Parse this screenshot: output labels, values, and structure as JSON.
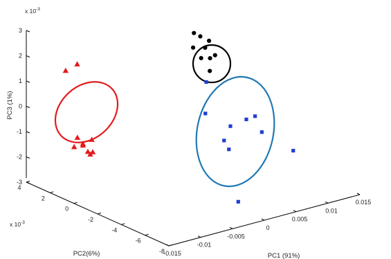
{
  "chart_data": {
    "type": "scatter",
    "title": "",
    "view": "3d",
    "axes": {
      "x": {
        "label": "PC1 (91%)",
        "range": [
          -0.015,
          0.015
        ],
        "ticks": [
          "-0.015",
          "-0.01",
          "-0.005",
          "0",
          "0.005",
          "0.01",
          "0.015"
        ]
      },
      "y": {
        "label": "PC2(6%)",
        "range": [
          -8,
          4
        ],
        "ticks": [
          "-8",
          "-6",
          "-4",
          "-2",
          "0",
          "2",
          "4"
        ],
        "multiplier": "x 10",
        "exponent": "-3"
      },
      "z": {
        "label": "PC3 (1%)",
        "range": [
          -3,
          3
        ],
        "ticks": [
          "-3",
          "-2",
          "-1",
          "0",
          "1",
          "2",
          "3"
        ],
        "multiplier": "x 10",
        "exponent": "-3"
      }
    },
    "grid": false,
    "series": [
      {
        "marker": "triangle",
        "color": "#e31a1c",
        "cluster_ellipse_color": "#e31a1c",
        "points": [
          {
            "x": -0.0105,
            "y": 3.1,
            "z": 1.3
          },
          {
            "x": -0.0085,
            "y": 3.2,
            "z": 1.4
          },
          {
            "x": -0.0135,
            "y": 0.5,
            "z": -0.6
          },
          {
            "x": -0.0132,
            "y": 0.2,
            "z": -0.8
          },
          {
            "x": -0.013,
            "y": 0.3,
            "z": -0.9
          },
          {
            "x": -0.0128,
            "y": 0.0,
            "z": -1.1
          },
          {
            "x": -0.0126,
            "y": -0.1,
            "z": -1.2
          },
          {
            "x": -0.0124,
            "y": -0.2,
            "z": -1.1
          },
          {
            "x": -0.012,
            "y": 0.1,
            "z": -0.7
          },
          {
            "x": -0.0142,
            "y": 0.4,
            "z": -0.9
          }
        ]
      },
      {
        "marker": "circle",
        "color": "#000000",
        "cluster_ellipse_color": "#000000",
        "points": [
          {
            "x": 0.002,
            "y": -1.0,
            "z": 2.8
          },
          {
            "x": 0.003,
            "y": -1.0,
            "z": 2.6
          },
          {
            "x": 0.0015,
            "y": -1.2,
            "z": 2.3
          },
          {
            "x": 0.0032,
            "y": -1.3,
            "z": 2.2
          },
          {
            "x": 0.004,
            "y": -1.2,
            "z": 2.4
          },
          {
            "x": 0.0022,
            "y": -1.5,
            "z": 1.9
          },
          {
            "x": 0.0036,
            "y": -1.5,
            "z": 1.8
          },
          {
            "x": 0.0042,
            "y": -1.6,
            "z": 1.9
          },
          {
            "x": 0.003,
            "y": -1.8,
            "z": 1.4
          }
        ]
      },
      {
        "marker": "square",
        "color": "#1f3fd0",
        "cluster_ellipse_color": "#1f78b4",
        "points": [
          {
            "x": 0.003,
            "y": -1.5,
            "z": 0.9
          },
          {
            "x": 0.001,
            "y": -2.5,
            "z": 0.0
          },
          {
            "x": 0.004,
            "y": -3.0,
            "z": -0.6
          },
          {
            "x": 0.0065,
            "y": -3.0,
            "z": -0.5
          },
          {
            "x": 0.0075,
            "y": -3.2,
            "z": -0.4
          },
          {
            "x": 0.008,
            "y": -3.5,
            "z": -1.0
          },
          {
            "x": 0.003,
            "y": -3.0,
            "z": -1.1
          },
          {
            "x": 0.0032,
            "y": -3.3,
            "z": -1.4
          },
          {
            "x": 0.012,
            "y": -4.0,
            "z": -1.9
          },
          {
            "x": 0.0015,
            "y": -5.0,
            "z": -3.0
          }
        ]
      }
    ]
  }
}
